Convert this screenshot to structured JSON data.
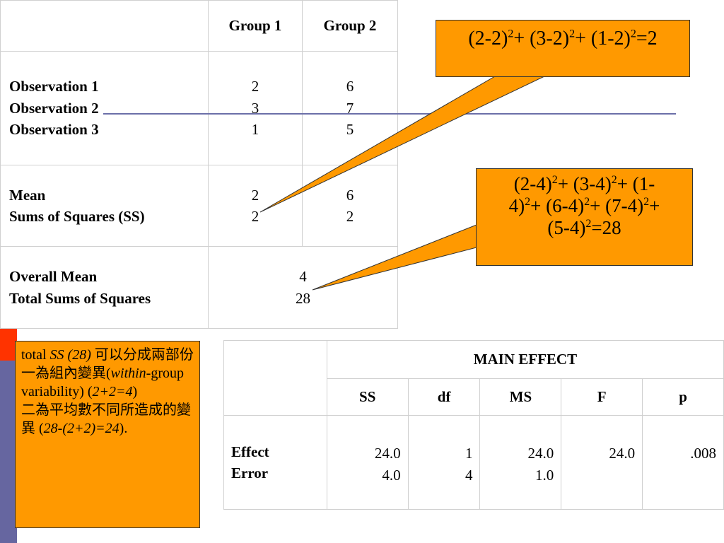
{
  "colors": {
    "bar_yellow": "#ffcc00",
    "bar_red": "#ff3300",
    "bar_purple": "#6666a0",
    "callout": "#ff9900",
    "rule": "#6b6fa8"
  },
  "table1": {
    "headers": [
      "Group 1",
      "Group 2"
    ],
    "observations": {
      "labels": [
        "Observation 1",
        "Observation 2",
        "Observation 3"
      ],
      "group1": [
        "2",
        "3",
        "1"
      ],
      "group2": [
        "6",
        "7",
        "5"
      ]
    },
    "stats": {
      "labels": [
        "Mean",
        "Sums of Squares (SS)"
      ],
      "group1": [
        "2",
        "2"
      ],
      "group2": [
        "6",
        "2"
      ]
    },
    "overall": {
      "labels": [
        "Overall Mean",
        "Total Sums of Squares"
      ],
      "values": [
        "4",
        "28"
      ]
    }
  },
  "callout1": {
    "terms": [
      {
        "base": "(2-2)",
        "exp": "2",
        "after": "+ "
      },
      {
        "base": "(3-2)",
        "exp": "2",
        "after": "+ "
      },
      {
        "base": "(1-2)",
        "exp": "2",
        "after": "=2"
      }
    ]
  },
  "callout2": {
    "lines": [
      [
        {
          "base": "(2-4)",
          "exp": "2",
          "after": "+ "
        },
        {
          "base": "(3-4)",
          "exp": "2",
          "after": "+ (1-"
        }
      ],
      [
        {
          "base": "4)",
          "exp": "2",
          "after": "+ "
        },
        {
          "base": "(6-4)",
          "exp": "2",
          "after": "+ "
        },
        {
          "base": "(7-4)",
          "exp": "2",
          "after": "+"
        }
      ],
      [
        {
          "base": "(5-4)",
          "exp": "2",
          "after": "=28"
        }
      ]
    ]
  },
  "note": {
    "p1": "total ",
    "p1_it": "SS (28)",
    "p1_rest": " 可以分成兩部份",
    "p2": "一為組內變異(",
    "p2_it": "within-",
    "p2_rest": "group variability) (",
    "p2_it2": "2+2=4",
    "p2_end": ")",
    "p3": "二為平均數不同所造成的變異 (",
    "p3_it": "28-(2+2)=24",
    "p3_end": ")."
  },
  "table2": {
    "main_header": "MAIN EFFECT",
    "columns": [
      "SS",
      "df",
      "MS",
      "F",
      "p"
    ],
    "row_labels": [
      "Effect",
      "Error"
    ],
    "ss": [
      "24.0",
      "4.0"
    ],
    "df": [
      "1",
      "4"
    ],
    "ms": [
      "24.0",
      "1.0"
    ],
    "f": [
      "24.0"
    ],
    "p": [
      ".008"
    ]
  }
}
